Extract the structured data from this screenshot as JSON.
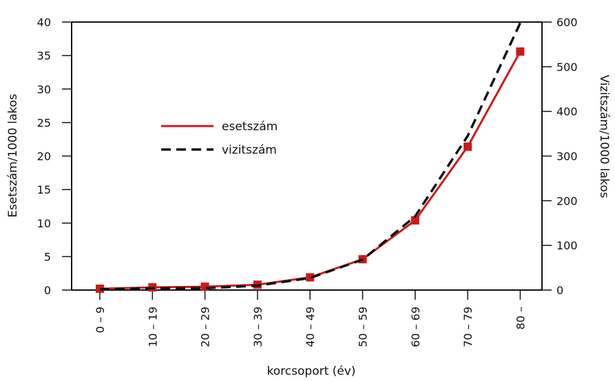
{
  "chart_data": {
    "type": "line",
    "categories": [
      "0 – 9",
      "10 – 19",
      "20 – 29",
      "30 – 39",
      "40 – 49",
      "50 – 59",
      "60 – 69",
      "70 – 79",
      "80 –"
    ],
    "xlabel": "korcsoport (év)",
    "ylabel": "Esetszám/1000 lakos",
    "ylabel_right": "Vizitszám/1000 lakos",
    "ylim": [
      0,
      40
    ],
    "ylim_right": [
      0,
      600
    ],
    "yticks": [
      0,
      5,
      10,
      15,
      20,
      25,
      30,
      35,
      40
    ],
    "yticks_right": [
      0,
      100,
      200,
      300,
      400,
      500,
      600
    ],
    "grid": false,
    "legend_position": "center-left",
    "series": [
      {
        "name": "esetszám",
        "axis": "left",
        "color": "#cc1a1a",
        "style": "solid",
        "marker": "square",
        "values": [
          0.2,
          0.4,
          0.5,
          0.8,
          1.9,
          4.6,
          10.4,
          21.4,
          35.6
        ]
      },
      {
        "name": "vizitszám",
        "axis": "right",
        "color": "#111111",
        "style": "dashed",
        "marker": "none",
        "values": [
          2,
          4,
          4,
          10,
          27,
          68,
          165,
          345,
          598
        ]
      }
    ]
  }
}
